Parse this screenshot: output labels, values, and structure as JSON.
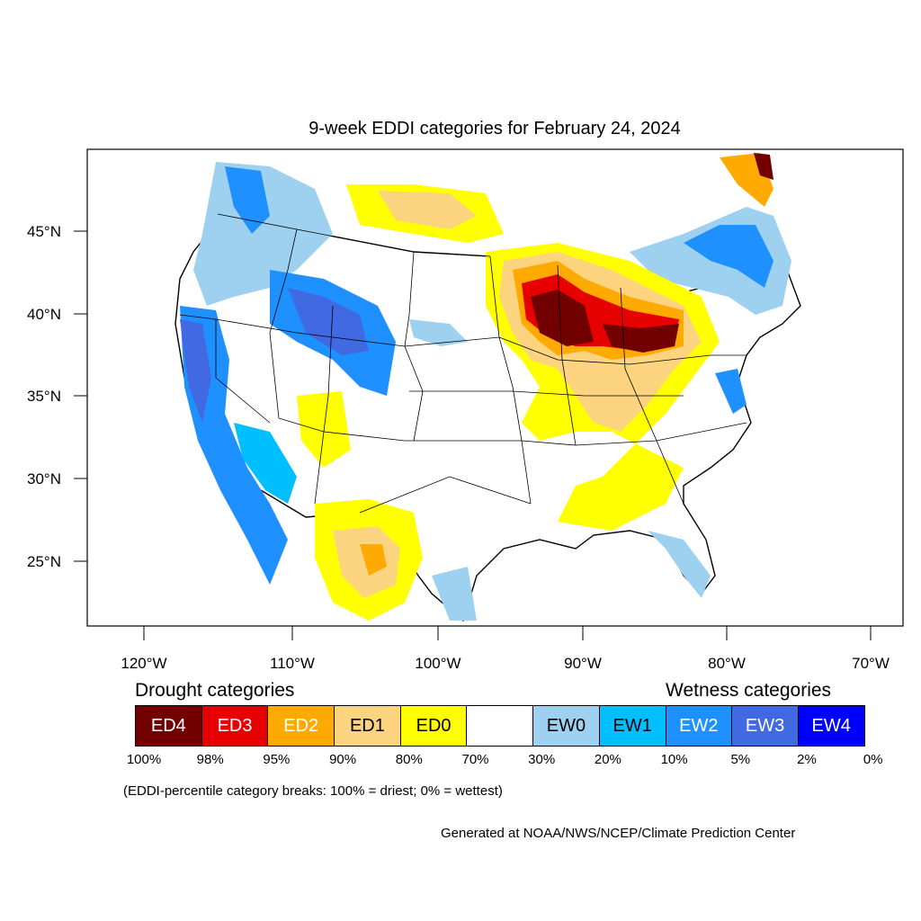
{
  "title": "9-week EDDI categories for February 24, 2024",
  "lat_labels": [
    "45°N",
    "40°N",
    "35°N",
    "30°N",
    "25°N"
  ],
  "lon_labels": [
    "120°W",
    "110°W",
    "100°W",
    "90°W",
    "80°W",
    "70°W"
  ],
  "legend": {
    "drought_heading": "Drought categories",
    "wetness_heading": "Wetness categories",
    "categories": [
      {
        "label": "ED4",
        "color": "#730000",
        "text_color": "#ffffff"
      },
      {
        "label": "ED3",
        "color": "#e60000",
        "text_color": "#ffffff"
      },
      {
        "label": "ED2",
        "color": "#ffaa00",
        "text_color": "#ffffff"
      },
      {
        "label": "ED1",
        "color": "#fcd37f",
        "text_color": "#000000"
      },
      {
        "label": "ED0",
        "color": "#ffff00",
        "text_color": "#000000"
      },
      {
        "label": "",
        "color": "#ffffff",
        "text_color": "#000000"
      },
      {
        "label": "EW0",
        "color": "#9ed0f0",
        "text_color": "#000000"
      },
      {
        "label": "EW1",
        "color": "#00bfff",
        "text_color": "#000000"
      },
      {
        "label": "EW2",
        "color": "#1e90ff",
        "text_color": "#ffffff"
      },
      {
        "label": "EW3",
        "color": "#4169e1",
        "text_color": "#ffffff"
      },
      {
        "label": "EW4",
        "color": "#0000ff",
        "text_color": "#ffffff"
      }
    ],
    "breaks": [
      "100%",
      "98%",
      "95%",
      "90%",
      "80%",
      "70%",
      "30%",
      "20%",
      "10%",
      "5%",
      "2%",
      "0%"
    ]
  },
  "note": "(EDDI-percentile category breaks: 100% = driest; 0% = wettest)",
  "credit": "Generated at NOAA/NWS/NCEP/Climate Prediction Center"
}
